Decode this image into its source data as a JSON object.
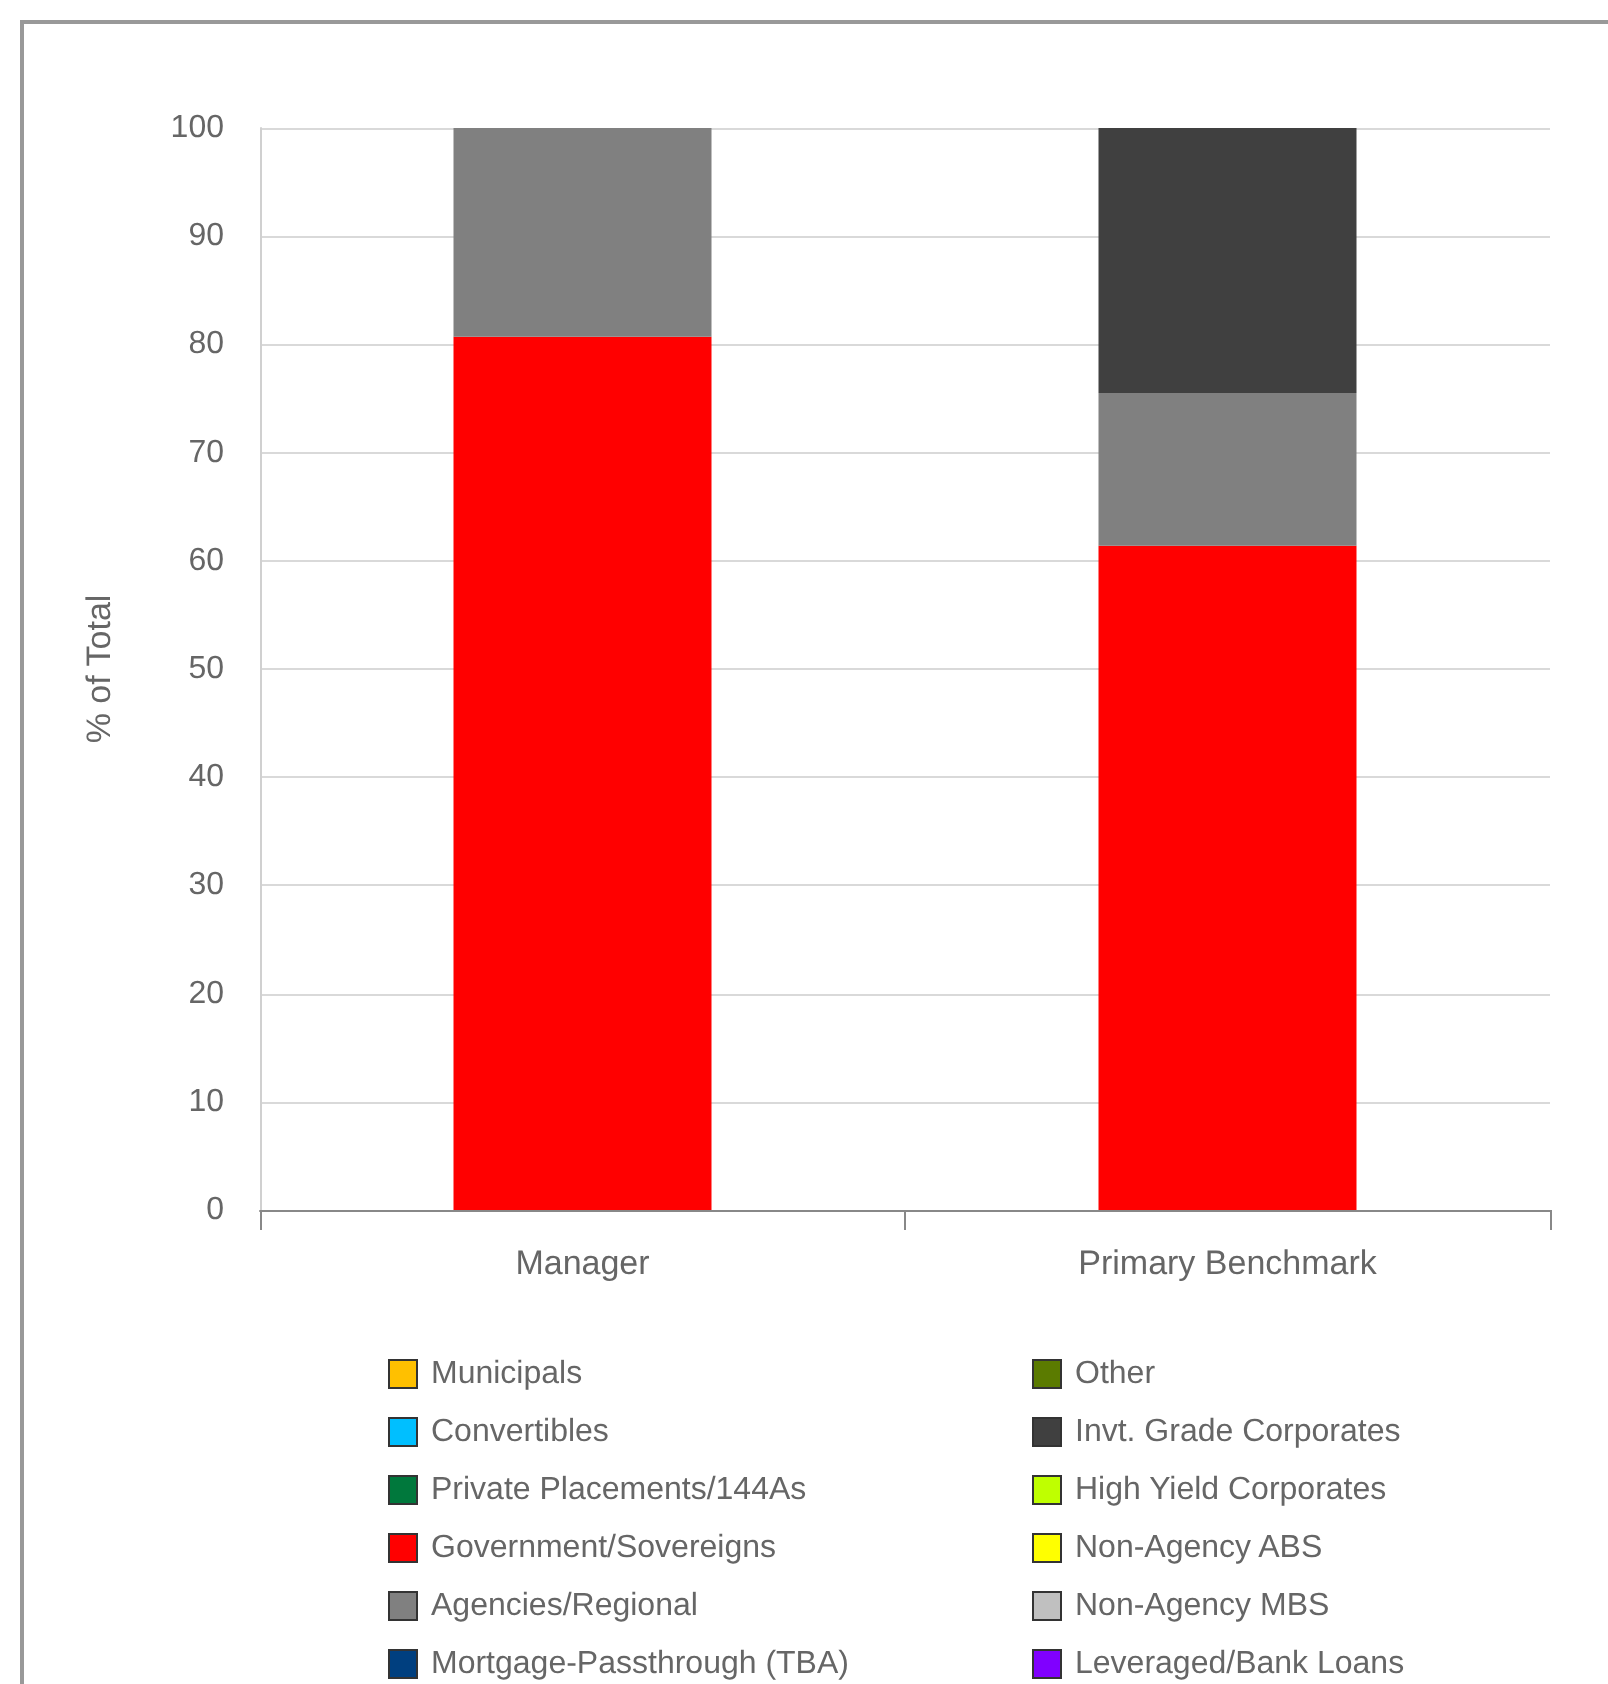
{
  "chart_data": {
    "type": "bar",
    "stacked": true,
    "ylabel": "% of Total",
    "categories": [
      "Manager",
      "Primary Benchmark"
    ],
    "series": [
      {
        "name": "Municipals",
        "color": "#ffc000",
        "values": [
          0,
          0
        ]
      },
      {
        "name": "Convertibles",
        "color": "#00bfff",
        "values": [
          0,
          0
        ]
      },
      {
        "name": "Private Placements/144As",
        "color": "#00783c",
        "values": [
          0,
          0
        ]
      },
      {
        "name": "Government/Sovereigns",
        "color": "#ff0000",
        "values": [
          80.7,
          61.4
        ]
      },
      {
        "name": "Agencies/Regional",
        "color": "#808080",
        "values": [
          19.3,
          14.1
        ]
      },
      {
        "name": "Mortgage-Passthrough (TBA)",
        "color": "#003f7f",
        "values": [
          0,
          0
        ]
      },
      {
        "name": "Other",
        "color": "#5b7b00",
        "values": [
          0,
          0
        ]
      },
      {
        "name": "Invt. Grade Corporates",
        "color": "#404040",
        "values": [
          0,
          24.5
        ]
      },
      {
        "name": "High Yield Corporates",
        "color": "#bfff00",
        "values": [
          0,
          0
        ]
      },
      {
        "name": "Non-Agency ABS",
        "color": "#ffff00",
        "values": [
          0,
          0
        ]
      },
      {
        "name": "Non-Agency MBS",
        "color": "#c0c0c0",
        "values": [
          0,
          0
        ]
      },
      {
        "name": "Leveraged/Bank Loans",
        "color": "#8000ff",
        "values": [
          0,
          0
        ]
      }
    ],
    "ylim": [
      0,
      100
    ],
    "yticks": [
      0,
      10,
      20,
      30,
      40,
      50,
      60,
      70,
      80,
      90,
      100
    ],
    "grid": "y",
    "legend": "bottom"
  }
}
